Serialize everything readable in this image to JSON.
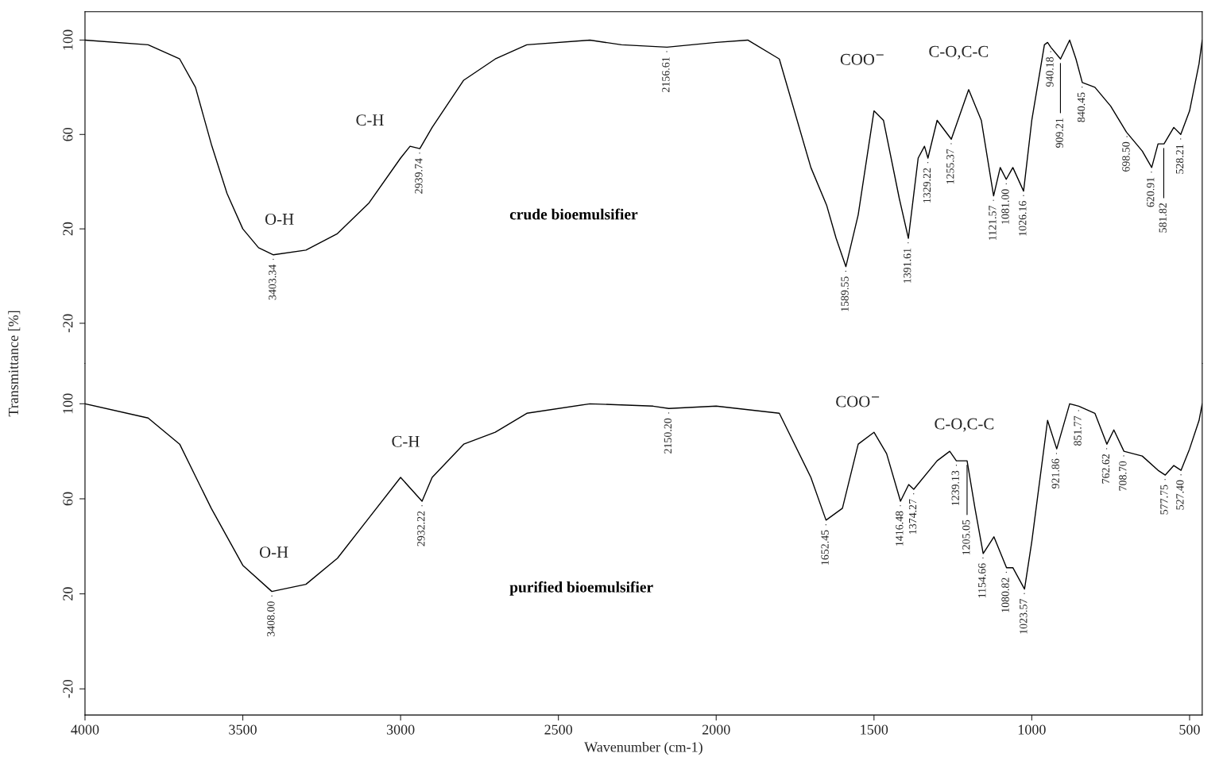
{
  "chart_data": [
    {
      "type": "line",
      "ylabel": "Transmittance [%]",
      "xlim": [
        4000,
        460
      ],
      "ylim": [
        -37,
        112
      ],
      "yticks": [
        -20,
        20,
        60,
        100
      ],
      "tick_labels": "y",
      "grid": false,
      "legend": false,
      "series": [
        {
          "name": "crude bioemulsifier",
          "color": "#000000",
          "x": [
            4000,
            3800,
            3700,
            3650,
            3600,
            3550,
            3500,
            3450,
            3403,
            3300,
            3200,
            3100,
            3000,
            2970,
            2939,
            2900,
            2800,
            2700,
            2600,
            2400,
            2300,
            2156,
            2000,
            1900,
            1800,
            1700,
            1650,
            1620,
            1589,
            1550,
            1500,
            1470,
            1420,
            1391,
            1360,
            1340,
            1329,
            1300,
            1255,
            1200,
            1160,
            1121,
            1100,
            1081,
            1060,
            1026,
            1000,
            960,
            950,
            940,
            909,
            880,
            860,
            840,
            800,
            750,
            700,
            650,
            620,
            600,
            581,
            550,
            528,
            500,
            470,
            460
          ],
          "values": [
            100,
            98,
            92,
            80,
            56,
            35,
            20,
            12,
            9,
            11,
            18,
            31,
            50,
            55,
            54,
            63,
            83,
            92,
            98,
            100,
            98,
            97,
            99,
            100,
            92,
            46,
            30,
            16,
            4,
            26,
            70,
            66,
            33,
            16,
            50,
            55,
            50,
            66,
            58,
            79,
            66,
            34,
            46,
            41,
            46,
            36,
            66,
            98,
            99,
            97,
            92,
            100,
            92,
            82,
            80,
            72,
            61,
            53,
            46,
            56,
            56,
            63,
            60,
            70,
            90,
            100
          ]
        }
      ],
      "annotations": [
        "O-H",
        "C-H",
        "COO$^{−}$",
        "C-O,C-C",
        {
          "text": "3403.34",
          "x": 3403.34,
          "y": 9
        },
        {
          "text": "2939.74",
          "x": 2939.74,
          "y": 54
        },
        {
          "text": "2156.61",
          "x": 2156.61,
          "y": 97
        },
        {
          "text": "1589.55",
          "x": 1589.55,
          "y": 4
        },
        {
          "text": "1391.61",
          "x": 1391.61,
          "y": 16
        },
        {
          "text": "1329.22",
          "x": 1329.22,
          "y": 50
        },
        {
          "text": "1255.37",
          "x": 1255.37,
          "y": 58
        },
        {
          "text": "1121.57",
          "x": 1121.57,
          "y": 34
        },
        {
          "text": "1081.00",
          "x": 1081.0,
          "y": 41
        },
        {
          "text": "1026.16",
          "x": 1026.16,
          "y": 36
        },
        {
          "text": "940.18",
          "x": 940.18,
          "y": 97
        },
        {
          "text": "909.21",
          "x": 909.21,
          "y": 92
        },
        {
          "text": "840.45",
          "x": 840.45,
          "y": 82
        },
        {
          "text": "698.50",
          "x": 698.5,
          "y": 61
        },
        {
          "text": "620.91",
          "x": 620.91,
          "y": 46
        },
        {
          "text": "581.82",
          "x": 581.82,
          "y": 56
        },
        {
          "text": "528.21",
          "x": 528.21,
          "y": 60
        }
      ]
    },
    {
      "type": "line",
      "xlabel": "Wavenumber (cm-1)",
      "xlim": [
        4000,
        460
      ],
      "ylim": [
        -31,
        117
      ],
      "xticks": [
        4000,
        3500,
        3000,
        2500,
        2000,
        1500,
        1000,
        500
      ],
      "yticks": [
        -20,
        20,
        60,
        100
      ],
      "grid": false,
      "legend": false,
      "series": [
        {
          "name": "purified bioemulsifier",
          "color": "#000000",
          "x": [
            4000,
            3800,
            3700,
            3600,
            3500,
            3408,
            3300,
            3200,
            3100,
            3000,
            2932,
            2900,
            2800,
            2700,
            2600,
            2400,
            2200,
            2150,
            2000,
            1800,
            1700,
            1652,
            1600,
            1550,
            1500,
            1460,
            1416,
            1390,
            1374,
            1300,
            1260,
            1239,
            1205,
            1180,
            1154,
            1120,
            1080,
            1060,
            1023,
            1000,
            950,
            921,
            880,
            851,
            800,
            762,
            740,
            708,
            650,
            600,
            577,
            550,
            527,
            500,
            470,
            460
          ],
          "values": [
            100,
            94,
            83,
            56,
            32,
            21,
            24,
            35,
            52,
            69,
            59,
            69,
            83,
            88,
            96,
            100,
            99,
            98,
            99,
            96,
            69,
            51,
            56,
            83,
            88,
            79,
            59,
            66,
            64,
            76,
            80,
            76,
            76,
            56,
            37,
            44,
            31,
            31,
            22,
            42,
            93,
            81,
            100,
            99,
            96,
            83,
            89,
            80,
            78,
            72,
            70,
            74,
            72,
            81,
            93,
            100
          ]
        }
      ],
      "annotations": [
        "O-H",
        "C-H",
        "COO$^{−}$",
        "C-O,C-C",
        {
          "text": "3408.00",
          "x": 3408.0,
          "y": 21
        },
        {
          "text": "2932.22",
          "x": 2932.22,
          "y": 59
        },
        {
          "text": "2150.20",
          "x": 2150.2,
          "y": 98
        },
        {
          "text": "1652.45",
          "x": 1652.45,
          "y": 51
        },
        {
          "text": "1416.48",
          "x": 1416.48,
          "y": 59
        },
        {
          "text": "1374.27",
          "x": 1374.27,
          "y": 64
        },
        {
          "text": "1239.13",
          "x": 1239.13,
          "y": 76
        },
        {
          "text": "1205.05",
          "x": 1205.05,
          "y": 76
        },
        {
          "text": "1154.66",
          "x": 1154.66,
          "y": 37
        },
        {
          "text": "1080.82",
          "x": 1080.82,
          "y": 31
        },
        {
          "text": "1023.57",
          "x": 1023.57,
          "y": 22
        },
        {
          "text": "921.86",
          "x": 921.86,
          "y": 81
        },
        {
          "text": "851.77",
          "x": 851.77,
          "y": 99
        },
        {
          "text": "762.62",
          "x": 762.62,
          "y": 83
        },
        {
          "text": "708.70",
          "x": 708.7,
          "y": 80
        },
        {
          "text": "577.75",
          "x": 577.75,
          "y": 70
        },
        {
          "text": "527.40",
          "x": 527.4,
          "y": 72
        }
      ]
    }
  ]
}
